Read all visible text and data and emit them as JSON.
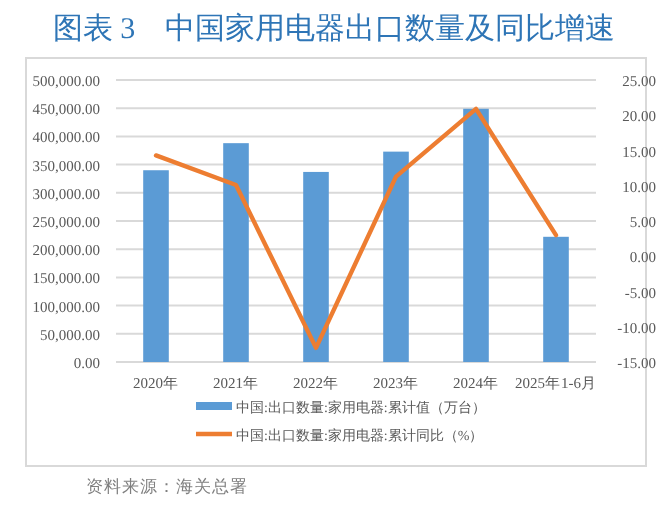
{
  "chart_data": {
    "type": "bar",
    "title": "图表 3　中国家用电器出口数量及同比增速",
    "categories": [
      "2020年",
      "2021年",
      "2022年",
      "2023年",
      "2024年",
      "2025年1-6月"
    ],
    "series": [
      {
        "name": "中国:出口数量:家用电器:累计值（万台）",
        "color": "#5b9bd5",
        "values": [
          340000,
          388000,
          337000,
          373000,
          449000,
          222000
        ]
      },
      {
        "name": "中国:出口数量:家用电器:累计同比（%）",
        "color": "#ed7d31",
        "type": "line",
        "axis": "y2",
        "values": [
          14.3,
          10.1,
          -13.0,
          11.3,
          20.9,
          3.0
        ]
      }
    ],
    "ylim": [
      0,
      500000
    ],
    "yticks": [
      {
        "value": 0,
        "label": "0.00"
      },
      {
        "value": 50000,
        "label": "50,000.00"
      },
      {
        "value": 100000,
        "label": "100,000.00"
      },
      {
        "value": 150000,
        "label": "150,000.00"
      },
      {
        "value": 200000,
        "label": "200,000.00"
      },
      {
        "value": 250000,
        "label": "250,000.00"
      },
      {
        "value": 300000,
        "label": "300,000.00"
      },
      {
        "value": 350000,
        "label": "350,000.00"
      },
      {
        "value": 400000,
        "label": "400,000.00"
      },
      {
        "value": 450000,
        "label": "450,000.00"
      },
      {
        "value": 500000,
        "label": "500,000.00"
      }
    ],
    "y2lim": [
      -15,
      25
    ],
    "y2ticks": [
      {
        "value": -15,
        "label": "-15.00"
      },
      {
        "value": -10,
        "label": "-10.00"
      },
      {
        "value": -5,
        "label": "-5.00"
      },
      {
        "value": 0,
        "label": "0.00"
      },
      {
        "value": 5,
        "label": "5.00"
      },
      {
        "value": 10,
        "label": "10.00"
      },
      {
        "value": 15,
        "label": "15.00"
      },
      {
        "value": 20,
        "label": "20.00"
      },
      {
        "value": 25,
        "label": "25.00"
      }
    ],
    "grid": "y",
    "legend": "bottom",
    "annotations": [
      "资料来源：海关总署"
    ]
  }
}
